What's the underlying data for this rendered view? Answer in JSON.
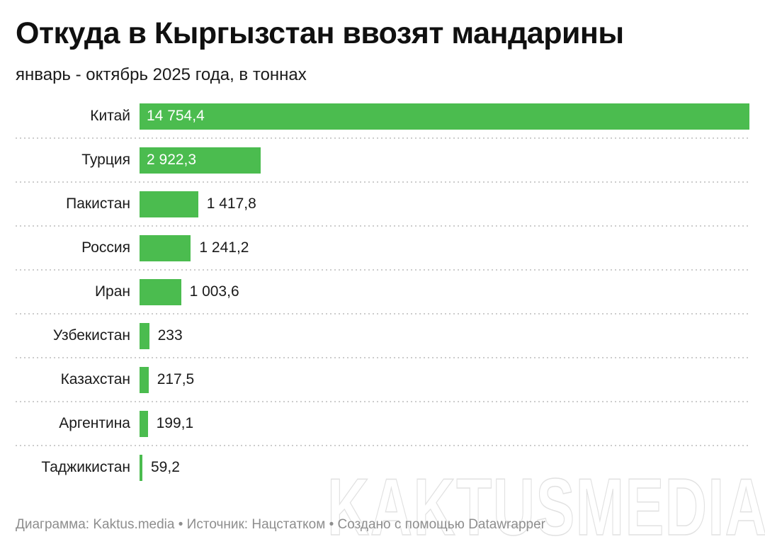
{
  "title": "Откуда в Кыргызстан ввозят мандарины",
  "subtitle": "январь - октябрь 2025 года, в тоннах",
  "footer": "Диаграмма: Kaktus.media • Источник: Нацстатком • Создано с помощью Datawrapper",
  "watermark": "KAKTUSMEDIA",
  "colors": {
    "bar": "#4bbc4f",
    "title_text": "#101010",
    "body_text": "#1a1a1a",
    "value_inside_text": "#ffffff",
    "footer_text": "#8e8e8e",
    "separator": "#cccccc",
    "watermark_outline": "#e1e1e1",
    "background": "#ffffff"
  },
  "chart_data": {
    "type": "bar",
    "orientation": "horizontal",
    "title": "Откуда в Кыргызстан ввозят мандарины",
    "subtitle": "январь - октябрь 2025 года, в тоннах",
    "unit": "тонны",
    "categories": [
      "Китай",
      "Турция",
      "Пакистан",
      "Россия",
      "Иран",
      "Узбекистан",
      "Казахстан",
      "Аргентина",
      "Таджикистан"
    ],
    "values": [
      14754.4,
      2922.3,
      1417.8,
      1241.2,
      1003.6,
      233,
      217.5,
      199.1,
      59.2
    ],
    "value_labels": [
      "14 754,4",
      "2 922,3",
      "1 417,8",
      "1 241,2",
      "1 003,6",
      "233",
      "217,5",
      "199,1",
      "59,2"
    ],
    "xlim": [
      0,
      14754.4
    ],
    "grid": "dotted row separators",
    "legend": "none",
    "value_label_placement_rule": "inside bar when bar is wide, otherwise right of bar"
  }
}
